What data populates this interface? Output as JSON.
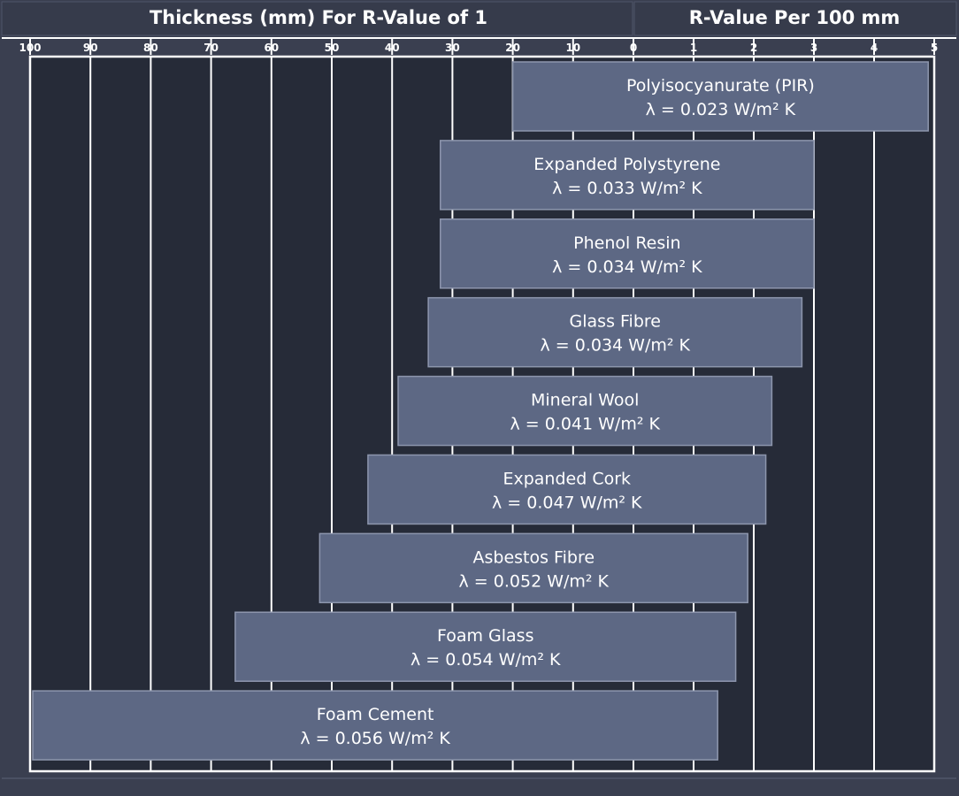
{
  "header": {
    "left_title": "Thickness (mm) For R-Value of 1",
    "right_title": "R-Value Per 100 mm"
  },
  "colors": {
    "page_bg": "#3a3f50",
    "plot_bg": "#262b38",
    "bar_fill": "#5d6884",
    "bar_stroke": "#8d96ad",
    "grid": "#ffffff",
    "text": "#ffffff"
  },
  "chart_data": {
    "type": "bar",
    "orientation": "horizontal",
    "title_left": "Thickness (mm) For R-Value of 1",
    "title_right": "R-Value Per 100 mm",
    "left_axis": {
      "ticks": [
        "100",
        "90",
        "80",
        "70",
        "60",
        "50",
        "40",
        "30",
        "20",
        "10",
        "0"
      ],
      "range": [
        100,
        0
      ]
    },
    "right_axis": {
      "ticks": [
        "1",
        "2",
        "3",
        "4",
        "5"
      ],
      "range": [
        0,
        5
      ]
    },
    "grid": true,
    "categories": [
      "Polyisocyanurate (PIR)",
      "Expanded Polystyrene",
      "Phenol Resin",
      "Glass Fibre",
      "Mineral Wool",
      "Expanded Cork",
      "Asbestos Fibre",
      "Foam Glass",
      "Foam Cement"
    ],
    "lambda_labels": [
      "λ = 0.023 W/m² K",
      "λ = 0.033 W/m² K",
      "λ = 0.034 W/m² K",
      "λ = 0.034 W/m² K",
      "λ = 0.041 W/m² K",
      "λ = 0.047 W/m² K",
      "λ = 0.052 W/m² K",
      "λ = 0.054 W/m² K",
      "λ = 0.056 W/m² K"
    ],
    "lambda_values": [
      0.023,
      0.033,
      0.034,
      0.034,
      0.041,
      0.047,
      0.052,
      0.054,
      0.056
    ],
    "thickness_mm_for_r1": [
      20,
      32,
      32,
      34,
      39,
      44,
      52,
      66,
      100
    ],
    "r_value_per_100mm": [
      4.9,
      3.0,
      3.0,
      2.8,
      2.3,
      2.2,
      1.9,
      1.7,
      1.4
    ]
  }
}
